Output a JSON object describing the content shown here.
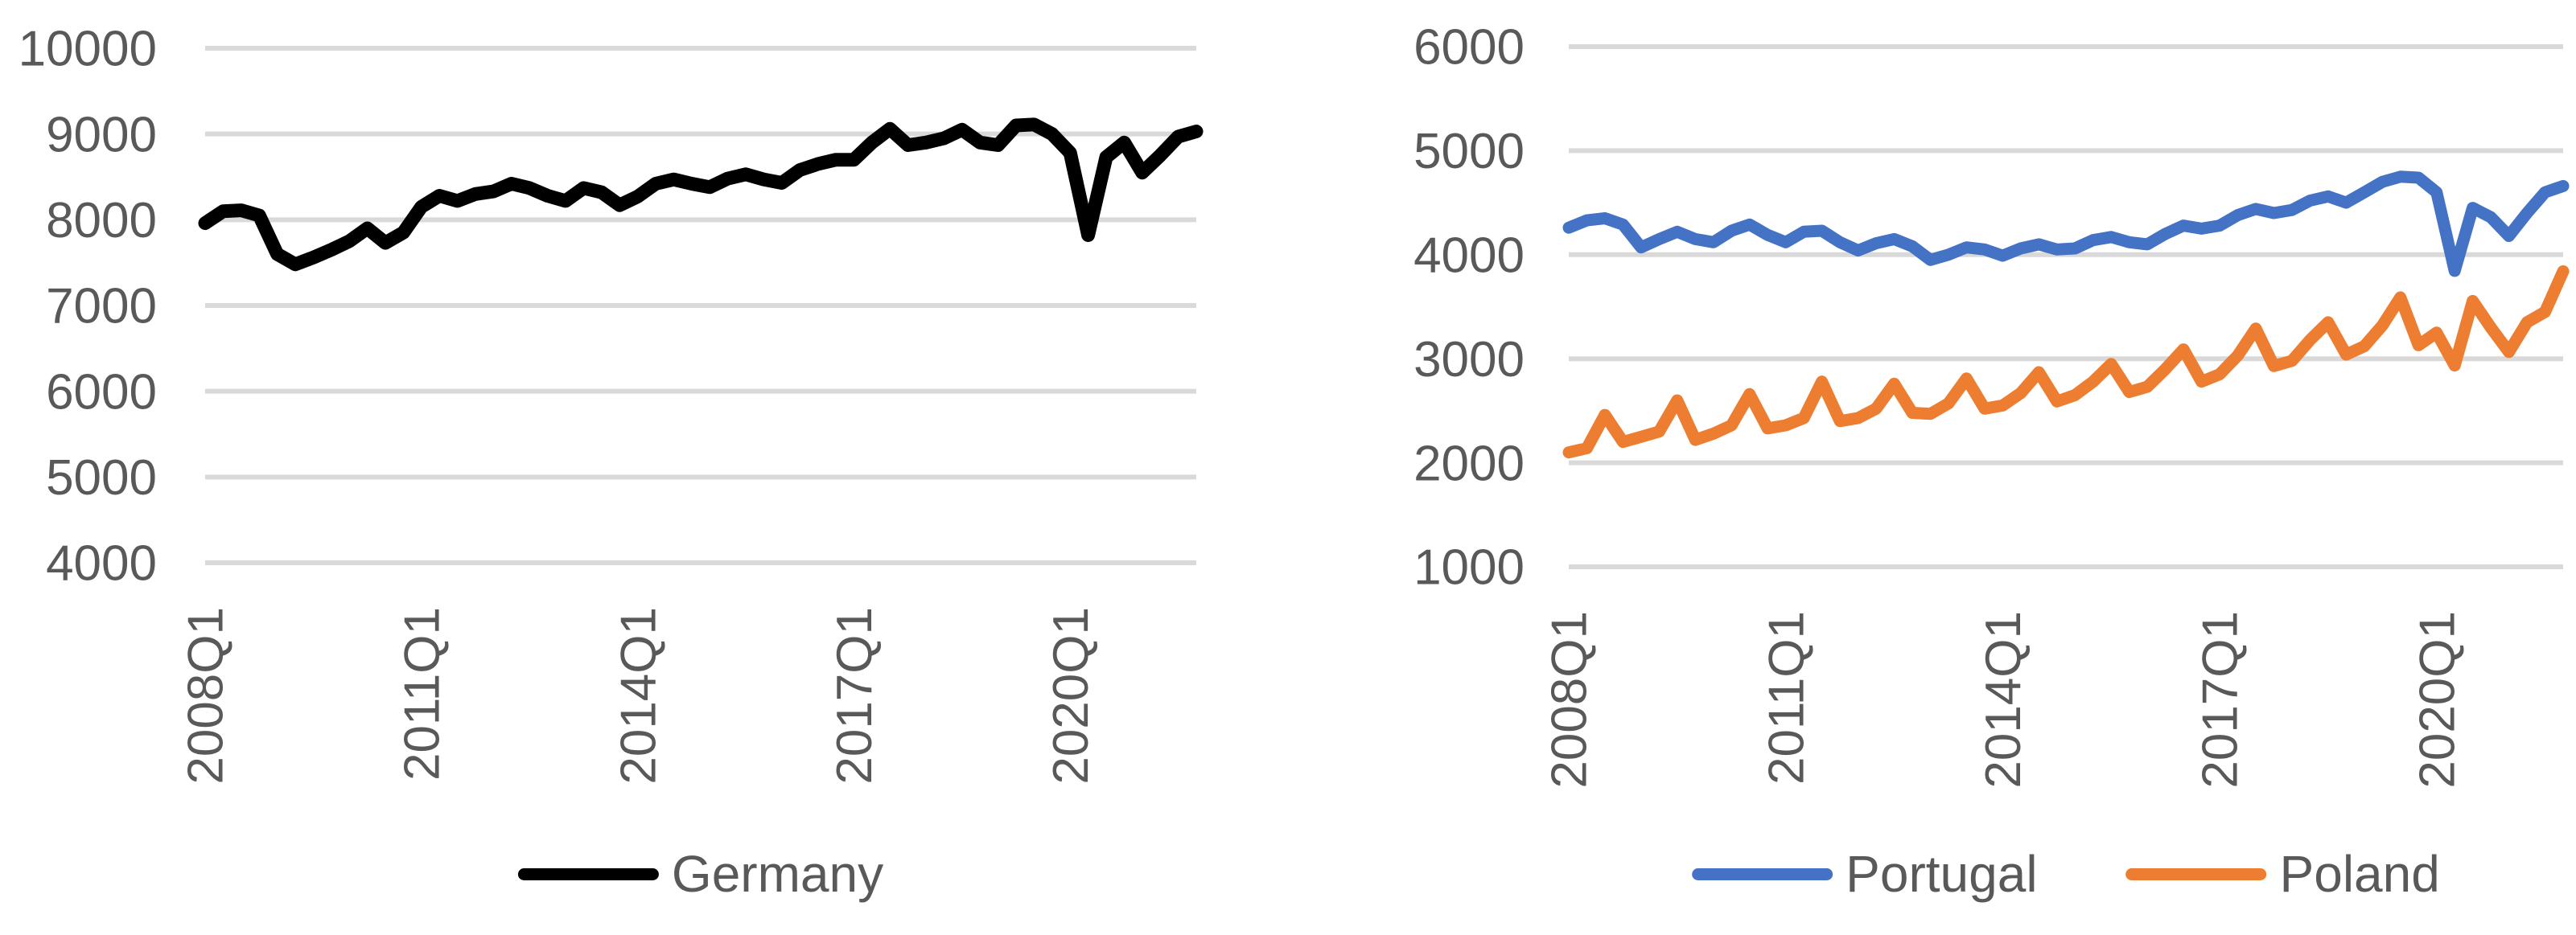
{
  "figure": {
    "background_color": "#FFFFFF",
    "axis_text_color": "#595959",
    "gridline_color": "#D9D9D9"
  },
  "chart_data": [
    {
      "type": "line",
      "title": "",
      "xlabel": "",
      "ylabel": "",
      "grid": "horizontal",
      "legend_position": "bottom",
      "x_start": "2008Q1",
      "x_frequency": "quarterly",
      "n_points": 56,
      "x_tick_labels": [
        "2008Q1",
        "2011Q1",
        "2014Q1",
        "2017Q1",
        "2020Q1"
      ],
      "x_tick_positions": [
        0,
        12,
        24,
        36,
        48
      ],
      "ylim": [
        4000,
        10000
      ],
      "yticks": [
        10000,
        9000,
        8000,
        7000,
        6000,
        5000,
        4000
      ],
      "ytick_labels": [
        "10000",
        "9000",
        "8000",
        "7000",
        "6000",
        "5000",
        "4000"
      ],
      "line_width": 17,
      "series": [
        {
          "name": "Germany",
          "color": "#000000",
          "values": [
            7960,
            8100,
            8110,
            8050,
            7600,
            7480,
            7560,
            7650,
            7750,
            7900,
            7730,
            7850,
            8150,
            8280,
            8220,
            8300,
            8330,
            8420,
            8370,
            8280,
            8220,
            8370,
            8320,
            8170,
            8270,
            8420,
            8470,
            8420,
            8380,
            8480,
            8530,
            8470,
            8430,
            8580,
            8650,
            8700,
            8700,
            8900,
            9060,
            8870,
            8900,
            8950,
            9050,
            8900,
            8870,
            9100,
            9110,
            9000,
            8780,
            7820,
            8730,
            8900,
            8550,
            8750,
            8970,
            9030
          ]
        }
      ]
    },
    {
      "type": "line",
      "title": "",
      "xlabel": "",
      "ylabel": "",
      "grid": "horizontal",
      "legend_position": "bottom",
      "x_start": "2008Q1",
      "x_frequency": "quarterly",
      "n_points": 56,
      "x_tick_labels": [
        "2008Q1",
        "2011Q1",
        "2014Q1",
        "2017Q1",
        "2020Q1"
      ],
      "x_tick_positions": [
        0,
        12,
        24,
        36,
        48
      ],
      "ylim": [
        1000,
        6000
      ],
      "yticks": [
        6000,
        5000,
        4000,
        3000,
        2000,
        1000
      ],
      "ytick_labels": [
        "6000",
        "5000",
        "4000",
        "3000",
        "2000",
        "1000"
      ],
      "line_width": 15,
      "series": [
        {
          "name": "Portugal",
          "color": "#4472C4",
          "values": [
            4260,
            4330,
            4350,
            4290,
            4070,
            4150,
            4220,
            4150,
            4120,
            4230,
            4290,
            4190,
            4120,
            4220,
            4230,
            4120,
            4040,
            4110,
            4150,
            4080,
            3950,
            4000,
            4070,
            4050,
            3990,
            4060,
            4100,
            4050,
            4060,
            4140,
            4170,
            4120,
            4100,
            4200,
            4280,
            4250,
            4280,
            4380,
            4440,
            4400,
            4430,
            4520,
            4560,
            4500,
            4600,
            4700,
            4750,
            4740,
            4600,
            3845,
            4450,
            4360,
            4180,
            4400,
            4600,
            4660
          ]
        },
        {
          "name": "Poland",
          "color": "#ED7D31",
          "values": [
            2100,
            2140,
            2460,
            2200,
            2250,
            2300,
            2600,
            2220,
            2280,
            2360,
            2660,
            2330,
            2360,
            2430,
            2780,
            2400,
            2430,
            2520,
            2760,
            2480,
            2470,
            2570,
            2810,
            2520,
            2550,
            2670,
            2870,
            2590,
            2650,
            2780,
            2950,
            2680,
            2730,
            2900,
            3090,
            2780,
            2850,
            3030,
            3290,
            2930,
            2980,
            3180,
            3350,
            3040,
            3120,
            3320,
            3590,
            3130,
            3250,
            2935,
            3555,
            3300,
            3065,
            3350,
            3450,
            3840
          ]
        }
      ]
    }
  ]
}
